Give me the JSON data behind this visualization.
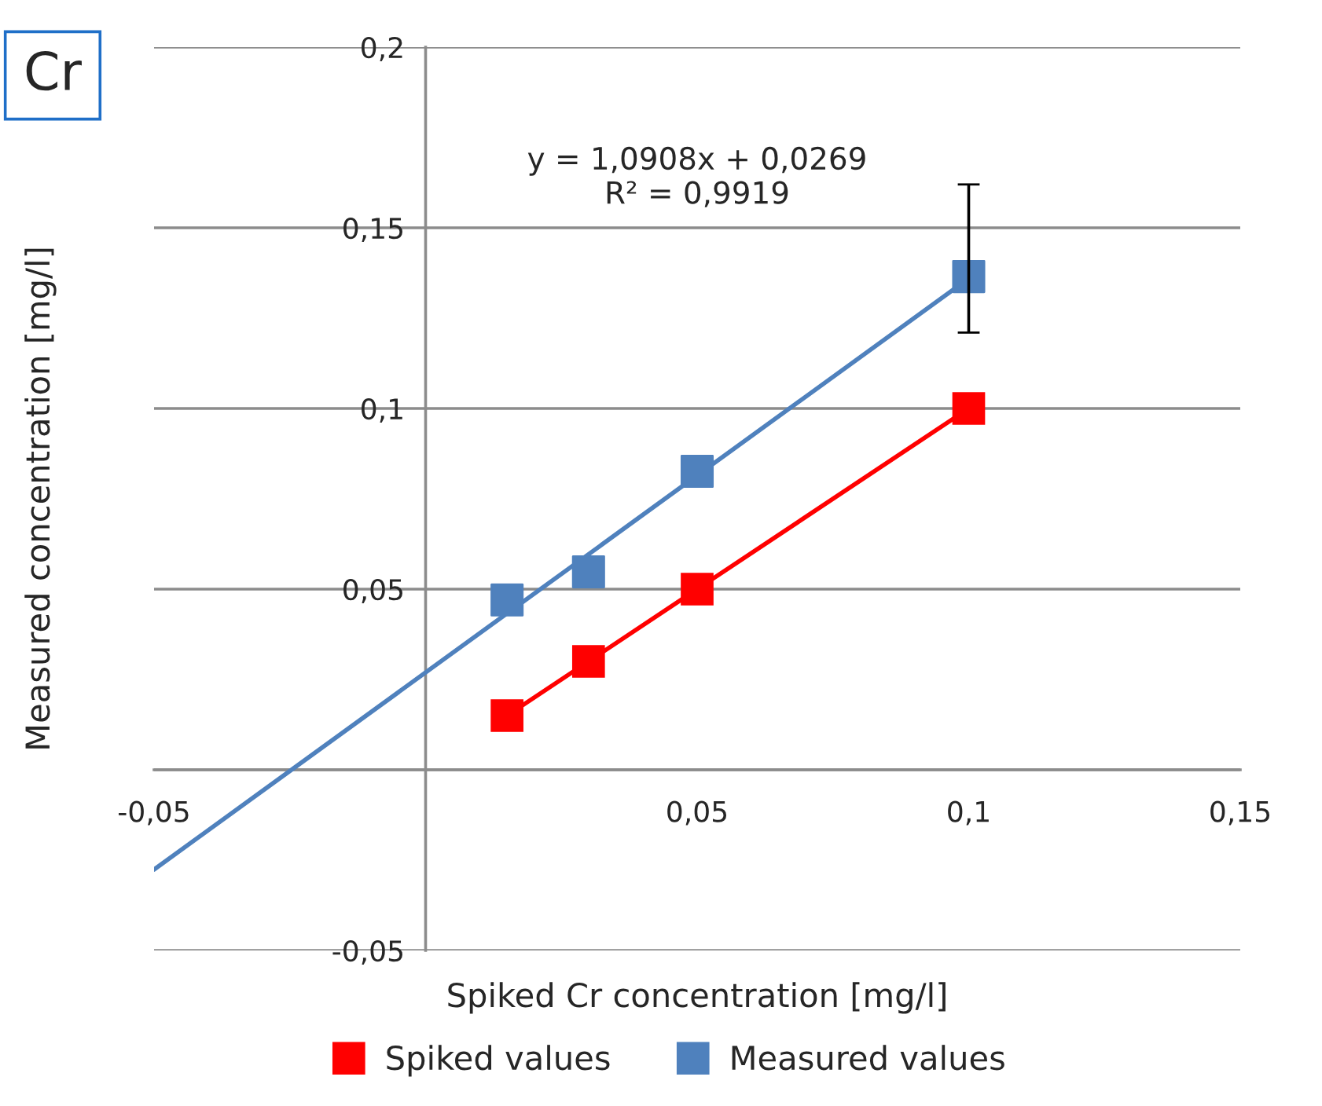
{
  "chart_data": {
    "type": "scatter",
    "title": "Cr",
    "xlabel": "Spiked Cr concentration [mg/l]",
    "ylabel": "Measured concentration [mg/l]",
    "x": [
      0.015,
      0.03,
      0.05,
      0.1
    ],
    "series": [
      {
        "name": "Spiked values",
        "type": "line",
        "color": "#ff0000",
        "values": [
          0.015,
          0.03,
          0.05,
          0.1
        ]
      },
      {
        "name": "Measured values",
        "color": "#4f81bd",
        "values": [
          0.047,
          0.0548,
          0.0826,
          0.1365
        ],
        "errors": [
          null,
          null,
          null,
          [
            0.121,
            0.162
          ]
        ]
      },
      {
        "type": "line",
        "color": "#4f81bd",
        "x": [
          -0.05,
          0.1
        ],
        "values": [
          -0.0276,
          0.136
        ],
        "marker": "none"
      }
    ],
    "annotations": [
      "y = 1,0908x + 0,0269\nR² = 0,9919"
    ],
    "xlim": [
      -0.05,
      0.15
    ],
    "ylim": [
      -0.05,
      0.2
    ],
    "xticks": [
      {
        "value": -0.05,
        "label": "-0,05"
      },
      {
        "value": 0,
        "label": null
      },
      {
        "value": 0.05,
        "label": "0,05"
      },
      {
        "value": 0.1,
        "label": "0,1"
      },
      {
        "value": 0.15,
        "label": "0,15"
      }
    ],
    "yticks": [
      {
        "value": -0.05,
        "label": "-0,05"
      },
      {
        "value": 0,
        "label": null
      },
      {
        "value": 0.05,
        "label": "0,05"
      },
      {
        "value": 0.1,
        "label": "0,1"
      },
      {
        "value": 0.15,
        "label": "0,15"
      },
      {
        "value": 0.2,
        "label": "0,2"
      }
    ],
    "grid": "y",
    "legend": "bottom",
    "marker": "square",
    "line_style": "solid"
  }
}
